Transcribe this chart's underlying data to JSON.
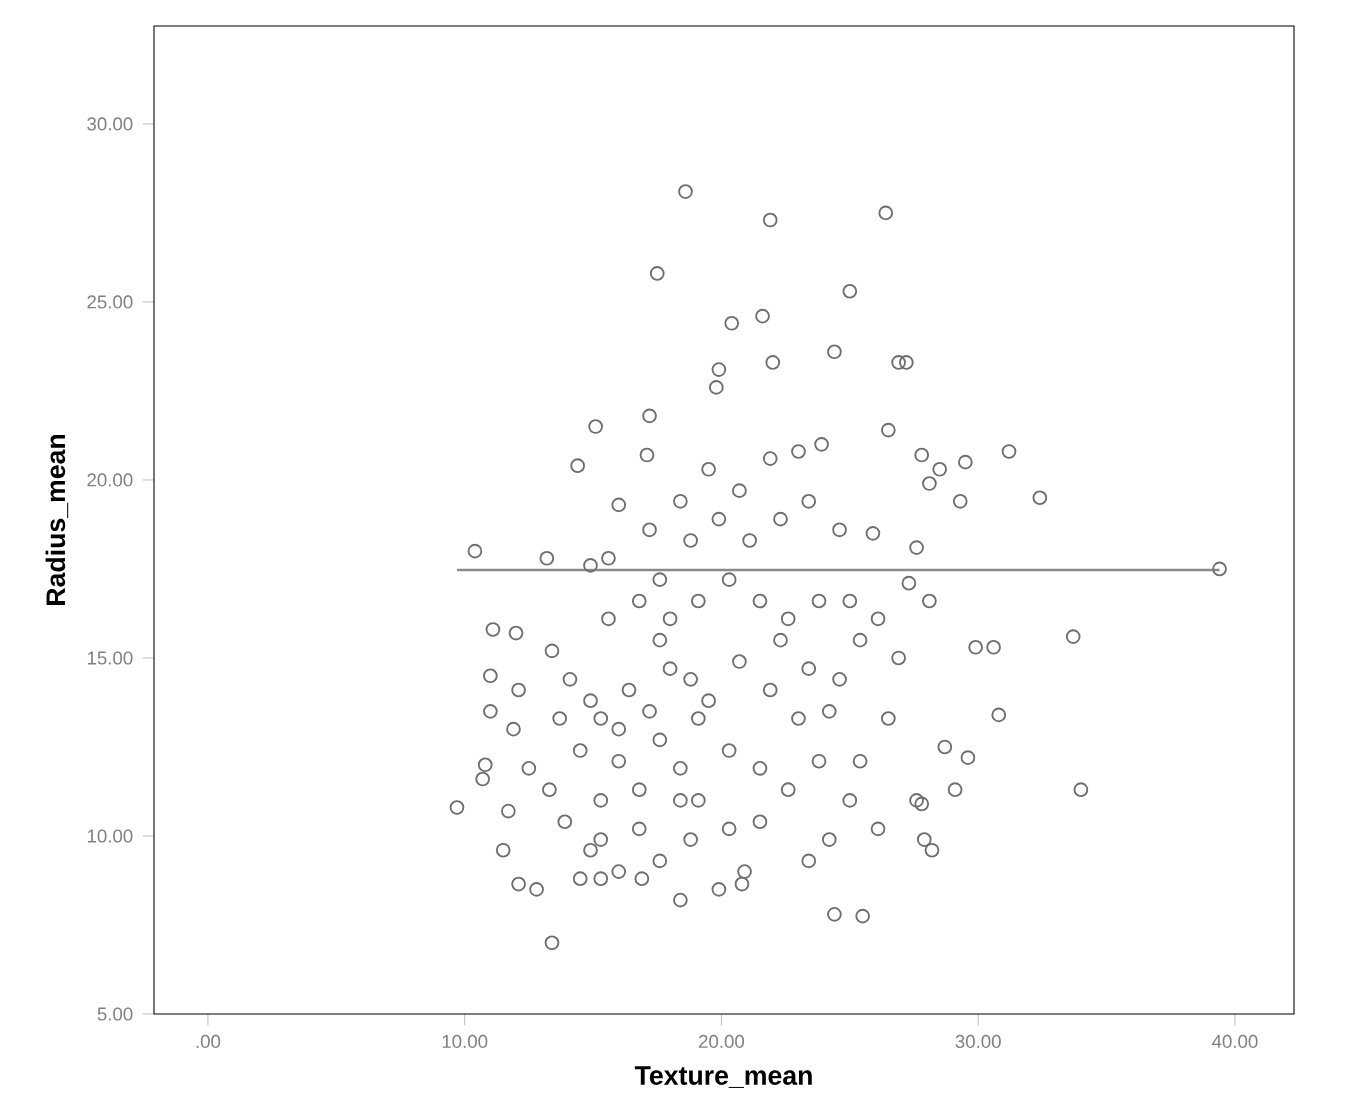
{
  "chart_data": {
    "type": "scatter",
    "xlabel": "Texture_mean",
    "ylabel": "Radius_mean",
    "xlim": [
      -2.1,
      42.3
    ],
    "ylim": [
      5,
      32.75
    ],
    "xticks": [
      {
        "value": 0,
        "label": ".00"
      },
      {
        "value": 10,
        "label": "10.00"
      },
      {
        "value": 20,
        "label": "20.00"
      },
      {
        "value": 30,
        "label": "30.00"
      },
      {
        "value": 40,
        "label": "40.00"
      }
    ],
    "yticks": [
      {
        "value": 5,
        "label": "5.00"
      },
      {
        "value": 10,
        "label": "10.00"
      },
      {
        "value": 15,
        "label": "15.00"
      },
      {
        "value": 20,
        "label": "20.00"
      },
      {
        "value": 25,
        "label": "25.00"
      },
      {
        "value": 30,
        "label": "30.00"
      }
    ],
    "series": [
      {
        "marker": "circle",
        "color": "#6e6e6e",
        "x": [
          18.6,
          21.9,
          26.4,
          17.5,
          25.0,
          21.6,
          20.4,
          24.4,
          22.0,
          19.9,
          26.9,
          27.2,
          17.2,
          15.1,
          14.4,
          17.1,
          16.0,
          23.9,
          19.8,
          26.5,
          27.8,
          31.2,
          32.4,
          29.5,
          28.5,
          29.3,
          28.1,
          25.9,
          27.6,
          10.4,
          13.2,
          14.9,
          39.4,
          27.3,
          28.1,
          33.7,
          29.9,
          30.6,
          11.1,
          12.0,
          11.0,
          11.0,
          10.8,
          10.7,
          9.7,
          30.8,
          34.0,
          28.7,
          29.6,
          29.1,
          27.8,
          27.9,
          28.2,
          27.6,
          24.4,
          25.5,
          20.9,
          20.8,
          19.9,
          13.4,
          12.1,
          12.8,
          14.5,
          16.9,
          18.4,
          18.8,
          11.5,
          11.7,
          12.5,
          11.9,
          12.1,
          13.4,
          14.1,
          15.3,
          16.0,
          16.8,
          17.6,
          18.4,
          19.1,
          15.3,
          14.5,
          13.7,
          16.4,
          18.0,
          19.5,
          20.7,
          21.9,
          23.0,
          23.8,
          22.6,
          21.5,
          20.3,
          16.8,
          15.3,
          13.9,
          13.3,
          24.6,
          25.4,
          25.0,
          23.8,
          22.6,
          21.5,
          20.3,
          19.1,
          18.0,
          16.8,
          15.6,
          18.8,
          19.9,
          21.1,
          22.3,
          23.4,
          24.6,
          20.7,
          21.9,
          23.0,
          19.5,
          18.4,
          17.2,
          15.6,
          17.6,
          26.1,
          26.9,
          26.5,
          25.4,
          25.0,
          26.1,
          24.2,
          23.4,
          17.6,
          16.0,
          15.3,
          14.9,
          19.1,
          18.8,
          20.3,
          21.5,
          18.4,
          17.2,
          16.0,
          14.9,
          17.6,
          22.3,
          23.4,
          24.2
        ],
        "values": [
          28.1,
          27.3,
          27.5,
          25.8,
          25.3,
          24.6,
          24.4,
          23.6,
          23.3,
          23.1,
          23.3,
          23.3,
          21.8,
          21.5,
          20.4,
          20.7,
          19.3,
          21.0,
          22.6,
          21.4,
          20.7,
          20.8,
          19.5,
          20.5,
          20.3,
          19.4,
          19.9,
          18.5,
          18.1,
          18.0,
          17.8,
          17.6,
          17.5,
          17.1,
          16.6,
          15.6,
          15.3,
          15.3,
          15.8,
          15.7,
          14.5,
          13.5,
          12.0,
          11.6,
          10.8,
          13.4,
          11.3,
          12.5,
          12.2,
          11.3,
          10.9,
          9.9,
          9.6,
          11.0,
          7.8,
          7.75,
          9.0,
          8.65,
          8.5,
          7.0,
          8.65,
          8.5,
          8.8,
          8.8,
          8.2,
          9.9,
          9.6,
          10.7,
          11.9,
          13.0,
          14.1,
          15.2,
          14.4,
          13.3,
          12.1,
          11.3,
          12.7,
          11.9,
          11.0,
          11.0,
          12.4,
          13.3,
          14.1,
          14.7,
          13.8,
          14.9,
          14.1,
          13.3,
          12.1,
          11.3,
          10.4,
          10.2,
          10.2,
          9.9,
          10.4,
          11.3,
          14.4,
          15.5,
          16.6,
          16.6,
          16.1,
          16.6,
          17.2,
          16.6,
          16.1,
          16.6,
          16.1,
          18.3,
          18.9,
          18.3,
          18.9,
          19.4,
          18.6,
          19.7,
          20.6,
          20.8,
          20.3,
          19.4,
          18.6,
          17.8,
          17.2,
          16.1,
          15.0,
          13.3,
          12.1,
          11.0,
          10.2,
          9.9,
          9.3,
          9.3,
          9.0,
          8.8,
          9.6,
          13.3,
          14.4,
          12.4,
          11.9,
          11.0,
          13.5,
          13.0,
          13.8,
          15.5,
          15.5,
          14.7,
          13.5
        ]
      },
      {
        "type": "line",
        "marker": "none",
        "color": "#8a8a8a",
        "x": [
          9.7,
          39.4
        ],
        "values": [
          17.47,
          17.47
        ]
      }
    ]
  }
}
